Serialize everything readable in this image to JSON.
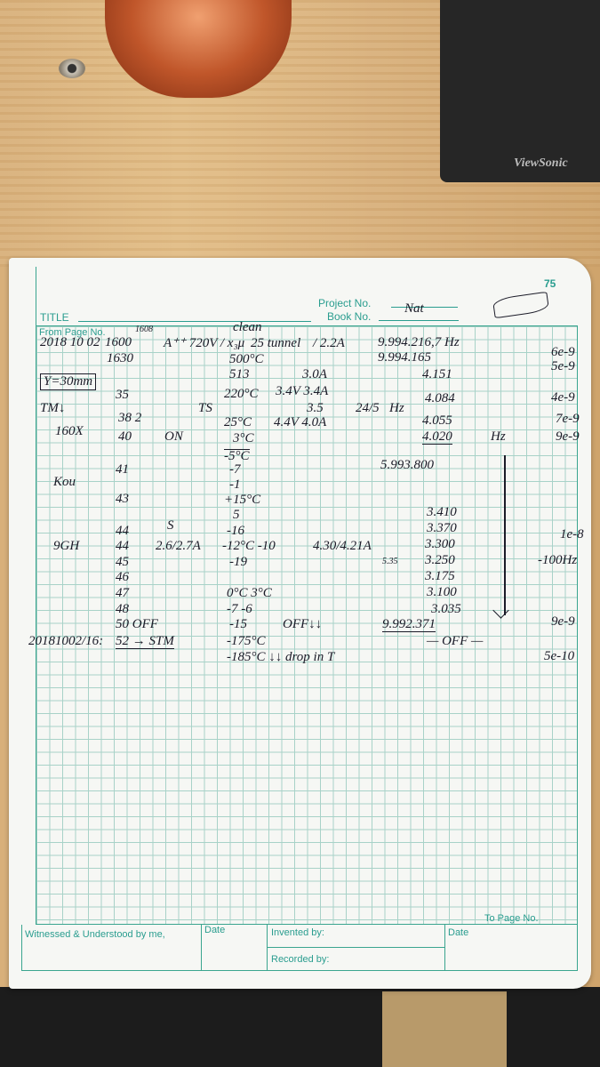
{
  "background": {
    "monitor_brand": "ViewSonic"
  },
  "notebook": {
    "page_number": "75",
    "project_label": "Project No.",
    "book_label": "Book No.",
    "title_label": "TITLE",
    "from_page_label": "From Page No.",
    "to_page_label": "To Page No.",
    "witnessed_label": "Witnessed & Understood by me,",
    "date_label_1": "Date",
    "invented_label": "Invented by:",
    "recorded_label": "Recorded by:",
    "date_label_2": "Date",
    "accent_color": "#2a9d8f"
  },
  "notes": [
    "2018 10 02",
    "1600",
    "1608",
    "A⁺⁺ 720V / x₃μ",
    "clean",
    "25 tunnel",
    "/ 2.2A",
    "9.994.216,7 Hz",
    "1630",
    "500°C",
    "9.994.165",
    "6e-9",
    "5e-9",
    "513",
    "3.0A",
    "4.151",
    "Y=30mm",
    "35",
    "220°C",
    "3.4V 3.4A",
    "3.5",
    "24/5",
    "Hz",
    "4.084",
    "4e-9",
    "TM↓",
    "TS",
    "160X",
    "38 2",
    "25°C",
    "4.4V 4.0A",
    "4.055",
    "7e-9",
    "40",
    "ON",
    "3°C",
    "4.020",
    "Hz",
    "9e-9",
    "-5°C",
    "41",
    "-7",
    "5.993.800",
    "Kou",
    "-1",
    "43",
    "+15°C",
    "5",
    "3.410",
    "44",
    "S",
    "-16",
    "3.370",
    "1e-8",
    "9GH",
    "44",
    "2.6/2.7A",
    "-12°C -10",
    "4.30/4.21A",
    "3.300",
    "45",
    "-19",
    "5.35",
    "3.250",
    "-100Hz",
    "46",
    "3.175",
    "47",
    "0°C   3°C",
    "3.100",
    "48",
    "-7  -6",
    "3.035",
    "50 OFF",
    "-15",
    "OFF↓↓",
    "9.992.371",
    "9e-9",
    "20181002/16:",
    "52 → STM",
    "-175°C",
    "— OFF —",
    "-185°C ↓↓ drop in T",
    "5e-10",
    "Nat"
  ]
}
